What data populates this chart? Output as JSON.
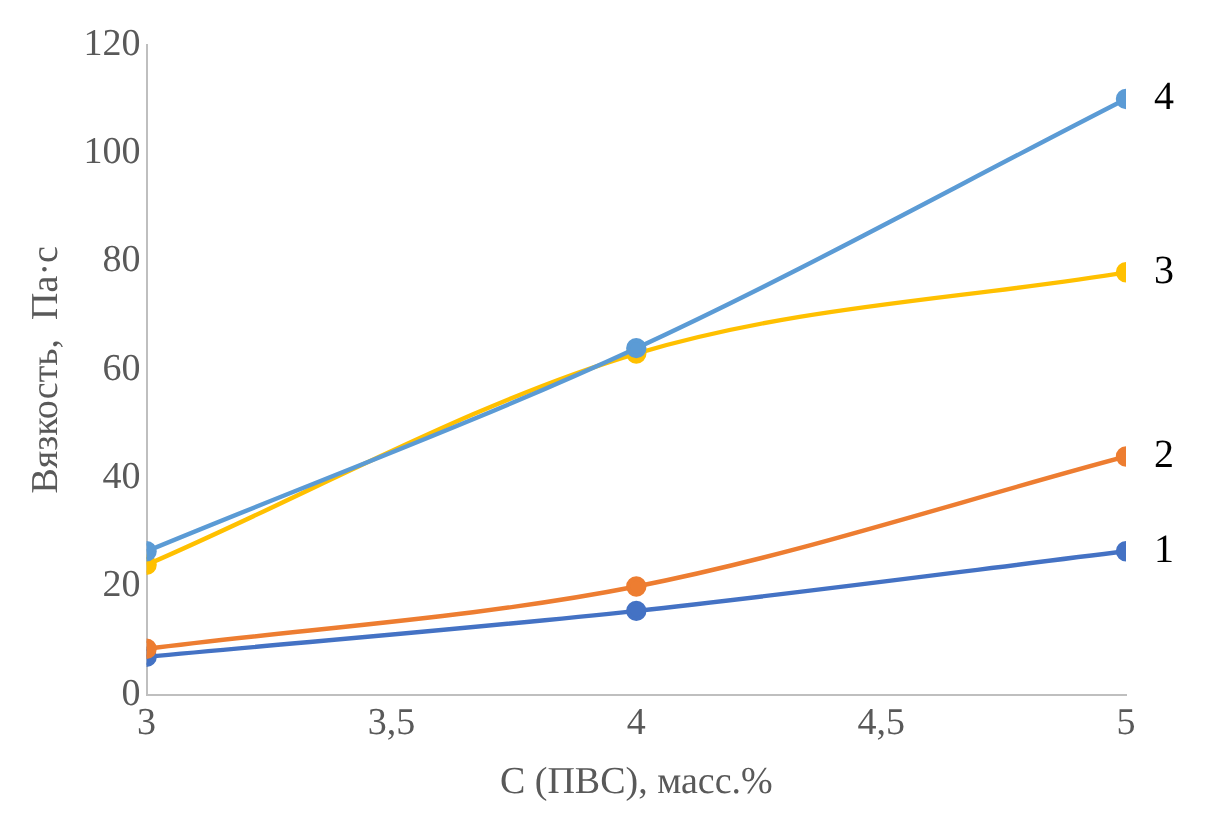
{
  "chart_data": {
    "type": "line",
    "xlabel": "С (ПВС), масс.%",
    "ylabel": "Вязкость,  Па·с",
    "xlim": [
      3,
      5
    ],
    "xticks": [
      3,
      {
        "value": 3.5,
        "label": "3,5"
      },
      4,
      {
        "value": 4.5,
        "label": "4,5"
      },
      5
    ],
    "ylim": [
      0,
      120
    ],
    "yticks": [
      0,
      20,
      40,
      60,
      80,
      100,
      120
    ],
    "grid": false,
    "legend": false,
    "marker": "circle",
    "x": [
      3,
      4,
      5
    ],
    "series": [
      {
        "name": "1",
        "color": "#4472c4",
        "values": [
          7,
          15.5,
          26.5
        ]
      },
      {
        "name": "2",
        "color": "#ed7d31",
        "values": [
          8.5,
          20,
          44
        ]
      },
      {
        "name": "3",
        "color": "#ffc000",
        "values": [
          24,
          63,
          78
        ]
      },
      {
        "name": "4",
        "color": "#5b9bd5",
        "values": [
          26.5,
          64,
          110
        ]
      }
    ]
  }
}
